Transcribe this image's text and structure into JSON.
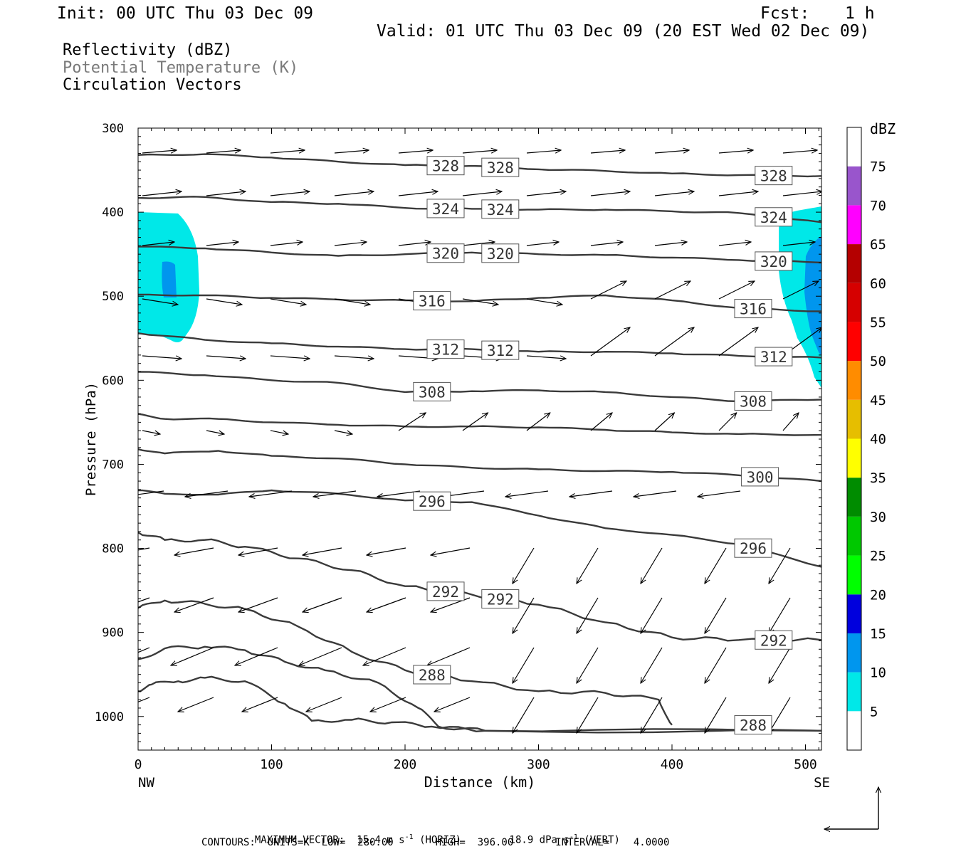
{
  "header": {
    "init": "Init: 00 UTC Thu 03 Dec 09",
    "fcst_label": "Fcst:",
    "fcst_value": "1 h",
    "valid": "Valid: 01 UTC Thu 03 Dec 09 (20 EST Wed 02 Dec 09)"
  },
  "legend": {
    "line1": "Reflectivity (dBZ)",
    "line2": "Potential Temperature (K)",
    "line3": "Circulation Vectors"
  },
  "footer": {
    "max_vector_label": "MAXIMUM VECTOR:",
    "horiz": "15.4 m s",
    "horiz_exp": "-1",
    "horiz_tag": "(HORIZ)",
    "vert": "18.9 dPa s",
    "vert_exp": "-1",
    "vert_tag": "(VERT)",
    "contours": "CONTOURS:  UNITS=K  LOW=  280.00       HIGH=  396.00       INTERVAL=    4.0000"
  },
  "colors": {
    "contour": "#3a3a3a",
    "reflectivity_5": "#00e8e8",
    "reflectivity_10": "#0096ee",
    "label_box_border": "#555555"
  },
  "chart_data": {
    "type": "cross-section",
    "xlabel": "Distance (km)",
    "ylabel": "Pressure (hPa)",
    "x_ticks": [
      0,
      100,
      200,
      300,
      400,
      500
    ],
    "y_ticks": [
      300,
      400,
      500,
      600,
      700,
      800,
      900,
      1000
    ],
    "xlim": [
      0,
      512
    ],
    "ylim": [
      300,
      1040
    ],
    "x_left_label": "NW",
    "x_right_label": "SE",
    "colorbar": {
      "unit": "dBZ",
      "levels": [
        5,
        10,
        15,
        20,
        25,
        30,
        35,
        40,
        45,
        50,
        55,
        60,
        65,
        70,
        75
      ],
      "colors": [
        "#ffffff",
        "#00e8e8",
        "#0096ee",
        "#0000dd",
        "#00ff00",
        "#00c800",
        "#008c00",
        "#ffff00",
        "#e6be00",
        "#ff8c00",
        "#ff0000",
        "#d60000",
        "#b40000",
        "#ff00ff",
        "#9955cc",
        "#ffffff"
      ]
    },
    "theta_contours": [
      {
        "value": 328,
        "labels": [
          "328",
          "328",
          "328"
        ],
        "points": [
          [
            0,
            332
          ],
          [
            50,
            331
          ],
          [
            100,
            335
          ],
          [
            150,
            340
          ],
          [
            200,
            344
          ],
          [
            250,
            345
          ],
          [
            300,
            349
          ],
          [
            350,
            351
          ],
          [
            400,
            354
          ],
          [
            450,
            356
          ],
          [
            512,
            357
          ]
        ]
      },
      {
        "value": 324,
        "labels": [
          "324",
          "324",
          "324"
        ],
        "points": [
          [
            0,
            383
          ],
          [
            50,
            382
          ],
          [
            100,
            388
          ],
          [
            150,
            390
          ],
          [
            200,
            395
          ],
          [
            250,
            396
          ],
          [
            300,
            397
          ],
          [
            350,
            397
          ],
          [
            400,
            399
          ],
          [
            450,
            401
          ],
          [
            512,
            412
          ]
        ]
      },
      {
        "value": 320,
        "labels": [
          "320",
          "320",
          "320"
        ],
        "points": [
          [
            0,
            441
          ],
          [
            50,
            443
          ],
          [
            100,
            448
          ],
          [
            150,
            452
          ],
          [
            200,
            450
          ],
          [
            250,
            448
          ],
          [
            300,
            450
          ],
          [
            350,
            451
          ],
          [
            400,
            454
          ],
          [
            450,
            457
          ],
          [
            512,
            460
          ]
        ]
      },
      {
        "value": 316,
        "labels": [
          "316",
          "316"
        ],
        "points": [
          [
            0,
            498
          ],
          [
            50,
            499
          ],
          [
            100,
            502
          ],
          [
            150,
            504
          ],
          [
            200,
            505
          ],
          [
            250,
            506
          ],
          [
            300,
            502
          ],
          [
            350,
            499
          ],
          [
            400,
            505
          ],
          [
            450,
            514
          ],
          [
            512,
            518
          ]
        ]
      },
      {
        "value": 312,
        "labels": [
          "312",
          "312",
          "312"
        ],
        "points": [
          [
            0,
            544
          ],
          [
            50,
            552
          ],
          [
            100,
            556
          ],
          [
            150,
            560
          ],
          [
            200,
            563
          ],
          [
            250,
            563
          ],
          [
            300,
            566
          ],
          [
            350,
            566
          ],
          [
            400,
            568
          ],
          [
            450,
            571
          ],
          [
            512,
            573
          ]
        ]
      },
      {
        "value": 308,
        "labels": [
          "308",
          "308"
        ],
        "points": [
          [
            0,
            590
          ],
          [
            50,
            594
          ],
          [
            100,
            600
          ],
          [
            150,
            603
          ],
          [
            200,
            614
          ],
          [
            250,
            613
          ],
          [
            300,
            612
          ],
          [
            350,
            614
          ],
          [
            400,
            620
          ],
          [
            450,
            625
          ],
          [
            512,
            623
          ]
        ]
      },
      {
        "value": 304,
        "labels": [],
        "points": [
          [
            0,
            640
          ],
          [
            20,
            646
          ],
          [
            60,
            646
          ],
          [
            100,
            650
          ],
          [
            150,
            653
          ],
          [
            200,
            655
          ],
          [
            250,
            655
          ],
          [
            300,
            656
          ],
          [
            350,
            659
          ],
          [
            400,
            662
          ],
          [
            450,
            664
          ],
          [
            512,
            665
          ]
        ]
      },
      {
        "value": 300,
        "labels": [
          "300"
        ],
        "points": [
          [
            0,
            682
          ],
          [
            20,
            687
          ],
          [
            60,
            684
          ],
          [
            100,
            690
          ],
          [
            150,
            693
          ],
          [
            200,
            700
          ],
          [
            250,
            704
          ],
          [
            300,
            706
          ],
          [
            350,
            708
          ],
          [
            400,
            709
          ],
          [
            450,
            713
          ],
          [
            512,
            720
          ]
        ]
      },
      {
        "value": 296,
        "labels": [
          "296",
          "296"
        ],
        "points": [
          [
            0,
            731
          ],
          [
            20,
            735
          ],
          [
            60,
            736
          ],
          [
            100,
            731
          ],
          [
            150,
            735
          ],
          [
            200,
            743
          ],
          [
            250,
            745
          ],
          [
            300,
            761
          ],
          [
            350,
            776
          ],
          [
            400,
            784
          ],
          [
            450,
            795
          ],
          [
            512,
            822
          ]
        ]
      },
      {
        "value": 292,
        "labels": [
          "292",
          "292",
          "292"
        ],
        "points": [
          [
            0,
            781
          ],
          [
            20,
            790
          ],
          [
            50,
            790
          ],
          [
            80,
            798
          ],
          [
            120,
            812
          ],
          [
            160,
            826
          ],
          [
            200,
            845
          ],
          [
            250,
            855
          ],
          [
            300,
            867
          ],
          [
            350,
            888
          ],
          [
            400,
            906
          ],
          [
            450,
            909
          ],
          [
            512,
            909
          ]
        ]
      },
      {
        "value": 288,
        "labels": [
          "288",
          "288"
        ],
        "points": [
          [
            0,
            871
          ],
          [
            20,
            862
          ],
          [
            50,
            866
          ],
          [
            80,
            872
          ],
          [
            120,
            893
          ],
          [
            160,
            923
          ],
          [
            200,
            945
          ],
          [
            250,
            958
          ],
          [
            300,
            970
          ],
          [
            350,
            972
          ],
          [
            390,
            980
          ],
          [
            400,
            1010
          ]
        ]
      },
      {
        "value": 284,
        "labels": [],
        "points": [
          [
            0,
            932
          ],
          [
            20,
            919
          ],
          [
            50,
            917
          ],
          [
            80,
            921
          ],
          [
            110,
            935
          ],
          [
            140,
            945
          ],
          [
            180,
            960
          ],
          [
            210,
            990
          ],
          [
            225,
            1012
          ],
          [
            260,
            1017
          ],
          [
            512,
            1017
          ]
        ]
      },
      {
        "value": 280,
        "labels": [],
        "points": [
          [
            0,
            970
          ],
          [
            10,
            962
          ],
          [
            30,
            958
          ],
          [
            50,
            954
          ],
          [
            80,
            958
          ],
          [
            110,
            985
          ],
          [
            130,
            1005
          ],
          [
            160,
            1004
          ],
          [
            190,
            1007
          ],
          [
            220,
            1012
          ],
          [
            260,
            1017
          ],
          [
            512,
            1017
          ]
        ]
      }
    ]
  }
}
